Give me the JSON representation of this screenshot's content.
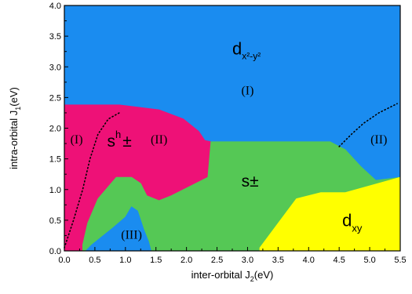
{
  "chart_data": {
    "type": "phase-diagram",
    "xlabel_main": "inter-orbital J",
    "xlabel_sub": "2",
    "xlabel_unit": "(eV)",
    "ylabel_main": "intra-orbital J",
    "ylabel_sub": "1",
    "ylabel_unit": "(eV)",
    "xlim": [
      0.0,
      5.5
    ],
    "ylim": [
      0.0,
      4.0
    ],
    "x_ticks": [
      "0.0",
      "0.5",
      "1.0",
      "1.5",
      "2.0",
      "2.5",
      "3.0",
      "3.5",
      "4.0",
      "4.5",
      "5.0",
      "5.5"
    ],
    "y_ticks": [
      "0.0",
      "0.5",
      "1.0",
      "1.5",
      "2.0",
      "2.5",
      "3.0",
      "3.5",
      "4.0"
    ],
    "colors": {
      "blue": "#1a8cf0",
      "magenta": "#ee1177",
      "green": "#55c855",
      "yellow": "#ffff00"
    },
    "regions": [
      {
        "name": "magenta-region",
        "color": "magenta",
        "points": [
          [
            0,
            2.38
          ],
          [
            0.9,
            2.38
          ],
          [
            1.55,
            2.3
          ],
          [
            1.95,
            2.15
          ],
          [
            2.2,
            1.95
          ],
          [
            2.3,
            1.8
          ],
          [
            2.4,
            1.78
          ],
          [
            2.35,
            1.2
          ],
          [
            2.05,
            1.05
          ],
          [
            1.75,
            0.9
          ],
          [
            1.55,
            0.82
          ],
          [
            1.35,
            0.9
          ],
          [
            1.25,
            1.1
          ],
          [
            1.1,
            1.2
          ],
          [
            0.85,
            1.2
          ],
          [
            0.55,
            0.85
          ],
          [
            0.38,
            0.45
          ],
          [
            0.3,
            0.1
          ],
          [
            0.3,
            0
          ],
          [
            0,
            0
          ]
        ]
      },
      {
        "name": "green-region",
        "color": "green",
        "points": [
          [
            0.3,
            0
          ],
          [
            0.3,
            0.1
          ],
          [
            0.38,
            0.45
          ],
          [
            0.55,
            0.85
          ],
          [
            0.85,
            1.2
          ],
          [
            1.1,
            1.2
          ],
          [
            1.25,
            1.1
          ],
          [
            1.35,
            0.9
          ],
          [
            1.55,
            0.82
          ],
          [
            1.75,
            0.9
          ],
          [
            2.05,
            1.05
          ],
          [
            2.35,
            1.2
          ],
          [
            2.4,
            1.78
          ],
          [
            4.35,
            1.78
          ],
          [
            4.6,
            1.65
          ],
          [
            4.85,
            1.38
          ],
          [
            5.1,
            1.15
          ],
          [
            5.5,
            1.2
          ],
          [
            5.5,
            1.2
          ],
          [
            4.6,
            0.95
          ],
          [
            4.2,
            0.95
          ],
          [
            3.8,
            0.85
          ],
          [
            3.5,
            0.45
          ],
          [
            3.2,
            0.05
          ],
          [
            3.2,
            0
          ],
          [
            1.42,
            0
          ],
          [
            1.38,
            0.15
          ],
          [
            1.3,
            0.35
          ],
          [
            1.2,
            0.65
          ],
          [
            1.1,
            0.72
          ],
          [
            1.0,
            0.55
          ],
          [
            0.8,
            0.38
          ],
          [
            0.45,
            0.1
          ],
          [
            0.35,
            0
          ]
        ]
      },
      {
        "name": "blue-lower-region",
        "color": "blue",
        "points": [
          [
            0.35,
            0
          ],
          [
            0.45,
            0.1
          ],
          [
            0.8,
            0.38
          ],
          [
            1.0,
            0.55
          ],
          [
            1.1,
            0.72
          ],
          [
            1.2,
            0.65
          ],
          [
            1.3,
            0.35
          ],
          [
            1.38,
            0.15
          ],
          [
            1.42,
            0
          ]
        ]
      },
      {
        "name": "yellow-region",
        "color": "yellow",
        "points": [
          [
            3.2,
            0
          ],
          [
            3.2,
            0.05
          ],
          [
            3.5,
            0.45
          ],
          [
            3.8,
            0.85
          ],
          [
            4.2,
            0.95
          ],
          [
            4.6,
            0.95
          ],
          [
            5.5,
            1.2
          ],
          [
            5.5,
            0
          ]
        ]
      }
    ],
    "dotted_lines": [
      {
        "name": "left-dotted-boundary",
        "points": [
          [
            0.0,
            0.05
          ],
          [
            0.15,
            0.5
          ],
          [
            0.3,
            1.0
          ],
          [
            0.42,
            1.5
          ],
          [
            0.55,
            1.9
          ],
          [
            0.72,
            2.15
          ],
          [
            0.9,
            2.25
          ]
        ]
      },
      {
        "name": "right-dotted-boundary",
        "points": [
          [
            4.5,
            1.7
          ],
          [
            4.7,
            1.9
          ],
          [
            4.9,
            2.08
          ],
          [
            5.15,
            2.25
          ],
          [
            5.45,
            2.4
          ]
        ]
      }
    ],
    "labels": {
      "dx2y2_main": "d",
      "dx2y2_sub": "x²-y²",
      "region_I_top": "(I)",
      "region_I_left": "(I)",
      "region_II_left": "(II)",
      "region_II_right": "(II)",
      "region_III": "(III)",
      "sh_main": "s",
      "sh_sup": "h",
      "sh_pm": "±",
      "spm_main": "s",
      "spm_pm": "±",
      "dxy_main": "d",
      "dxy_sub": "xy"
    },
    "label_positions": {
      "dx2y2": [
        2.75,
        3.2
      ],
      "region_I_top": [
        3.0,
        2.55
      ],
      "region_I_left": [
        0.2,
        1.75
      ],
      "region_II_left": [
        1.55,
        1.75
      ],
      "region_II_right": [
        5.15,
        1.75
      ],
      "region_III": [
        1.1,
        0.2
      ],
      "sh": [
        0.7,
        1.7
      ],
      "spm": [
        2.9,
        1.05
      ],
      "dxy": [
        4.55,
        0.4
      ]
    }
  }
}
